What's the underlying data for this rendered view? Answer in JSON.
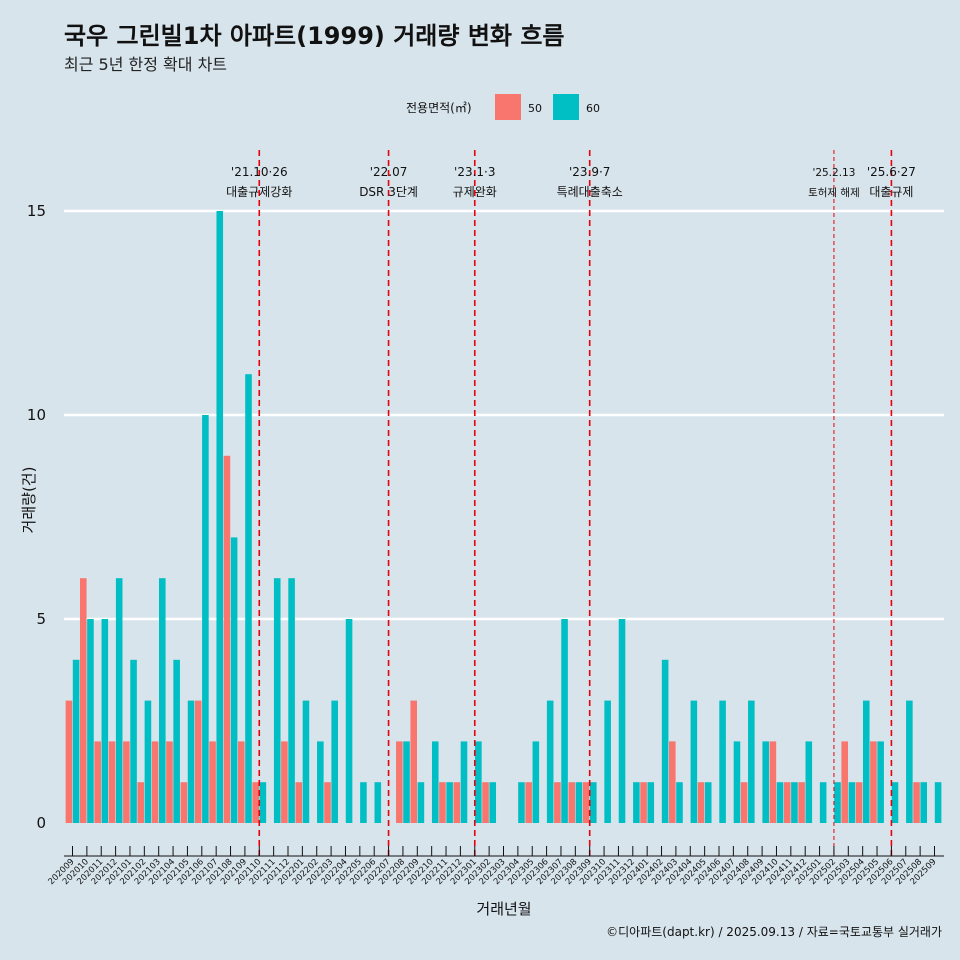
{
  "title": "국우 그린빌1차 아파트(1999) 거래량 변화 흐름",
  "subtitle": "최근 5년 한정 확대 차트",
  "caption": "©디아파트(dapt.kr) / 2025.09.13 / 자료=국토교통부 실거래가",
  "colors": {
    "background": "#d7e4ec",
    "series_50": "#f8766d",
    "series_60": "#00bfc4",
    "grid": "#ffffff",
    "event_line": "#e8000b"
  },
  "chart_data": {
    "type": "bar",
    "title": "국우 그린빌1차 아파트(1999) 거래량 변화 흐름",
    "xlabel": "거래년월",
    "ylabel": "거래량(건)",
    "ylim": [
      0,
      15
    ],
    "yticks": [
      "0",
      "5",
      "10",
      "15"
    ],
    "legend_title": "전용면적(㎡)",
    "legend_position": "top",
    "categories": [
      "202009",
      "202010",
      "202011",
      "202012",
      "202101",
      "202102",
      "202103",
      "202104",
      "202105",
      "202106",
      "202107",
      "202108",
      "202109",
      "202110",
      "202111",
      "202112",
      "202201",
      "202202",
      "202203",
      "202204",
      "202205",
      "202206",
      "202207",
      "202208",
      "202209",
      "202210",
      "202211",
      "202212",
      "202301",
      "202302",
      "202303",
      "202304",
      "202305",
      "202306",
      "202307",
      "202308",
      "202309",
      "202310",
      "202311",
      "202312",
      "202401",
      "202402",
      "202403",
      "202404",
      "202405",
      "202406",
      "202407",
      "202408",
      "202409",
      "202410",
      "202411",
      "202412",
      "202501",
      "202502",
      "202503",
      "202504",
      "202505",
      "202506",
      "202507",
      "202508",
      "202509"
    ],
    "x_tick_labels": [
      "202009",
      "202010",
      "202011",
      "202012",
      "202101",
      "202102",
      "202103",
      "202104",
      "202105",
      "202106",
      "202107",
      "202108",
      "202109",
      "202110",
      "202111",
      "202112",
      "202201",
      "202202",
      "202203",
      "202204",
      "202205",
      "202206",
      "202207",
      "202208",
      "202209",
      "202210",
      "202211",
      "202212",
      "202301",
      "202302",
      "202303",
      "202304",
      "202305",
      "202306",
      "202307",
      "202308",
      "202309",
      "202310",
      "202311",
      "202312",
      "202401",
      "202402",
      "202403",
      "202404",
      "202405",
      "202406",
      "202407",
      "202408",
      "202409",
      "202410",
      "202411",
      "202412",
      "202501",
      "202502",
      "202503",
      "202504",
      "202505",
      "202506",
      "202507",
      "202508",
      "202509"
    ],
    "series": [
      {
        "name": "50",
        "values": [
          3,
          6,
          2,
          2,
          2,
          1,
          2,
          2,
          1,
          3,
          2,
          9,
          2,
          1,
          0,
          2,
          1,
          0,
          1,
          0,
          0,
          0,
          0,
          2,
          3,
          0,
          1,
          1,
          0,
          1,
          0,
          0,
          1,
          0,
          1,
          1,
          1,
          0,
          0,
          0,
          1,
          0,
          2,
          0,
          1,
          0,
          0,
          1,
          0,
          2,
          1,
          1,
          0,
          0,
          2,
          1,
          2,
          0,
          0,
          1,
          0
        ]
      },
      {
        "name": "60",
        "values": [
          4,
          5,
          5,
          6,
          4,
          3,
          6,
          4,
          3,
          10,
          15,
          7,
          11,
          1,
          6,
          6,
          3,
          2,
          3,
          5,
          1,
          1,
          0,
          2,
          1,
          2,
          1,
          2,
          2,
          1,
          0,
          1,
          2,
          3,
          5,
          1,
          1,
          3,
          5,
          1,
          1,
          4,
          1,
          3,
          1,
          3,
          2,
          3,
          2,
          1,
          1,
          2,
          1,
          1,
          1,
          3,
          2,
          1,
          3,
          1,
          1
        ]
      }
    ],
    "annotations": [
      {
        "date": "'21.10·26",
        "label": "대출규제강화",
        "category": "202110",
        "style": "dashed"
      },
      {
        "date": "'22.07",
        "label": "DSR 3단계",
        "category": "202207",
        "style": "dashed"
      },
      {
        "date": "'23.1·3",
        "label": "규제완화",
        "category": "202301",
        "style": "dashed"
      },
      {
        "date": "'23.9·7",
        "label": "특례대출축소",
        "category": "202309",
        "style": "dashed"
      },
      {
        "date": "'25.2.13",
        "label": "토허제 해제",
        "category": "202502",
        "style": "thin-dashed"
      },
      {
        "date": "'25.6·27",
        "label": "대출규제",
        "category": "202506",
        "style": "dashed"
      }
    ]
  }
}
